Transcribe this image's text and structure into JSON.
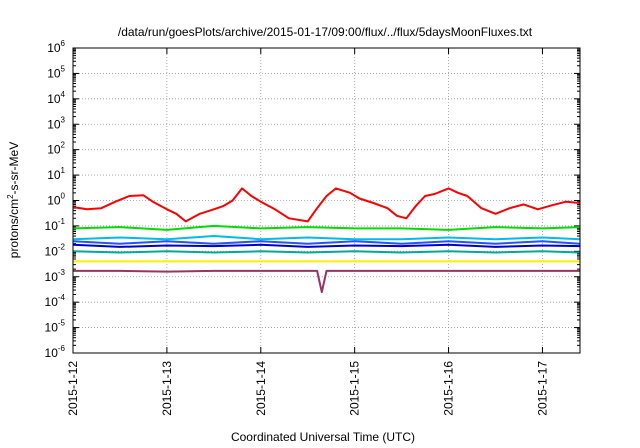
{
  "chart_data": {
    "type": "line",
    "title": "/data/run/goesPlots/archive/2015-01-17/09:00/flux/../flux/5daysMoonFluxes.txt",
    "xlabel": "Coordinated Universal Time (UTC)",
    "ylabel": {
      "prefix": "protons/cm",
      "sup": "2",
      "suffix": "-s-sr-MeV"
    },
    "yscale": "log",
    "ylim": [
      1e-06,
      1000000.0
    ],
    "xlim": [
      0,
      5.4
    ],
    "grid": true,
    "x_ticks": [
      "2015-1-12",
      "2015-1-13",
      "2015-1-14",
      "2015-1-15",
      "2015-1-16",
      "2015-1-17"
    ],
    "y_ticks": [
      {
        "base": "10",
        "exp": "-6"
      },
      {
        "base": "10",
        "exp": "-5"
      },
      {
        "base": "10",
        "exp": "-4"
      },
      {
        "base": "10",
        "exp": "-3"
      },
      {
        "base": "10",
        "exp": "-2"
      },
      {
        "base": "10",
        "exp": "-1"
      },
      {
        "base": "10",
        "exp": "0"
      },
      {
        "base": "10",
        "exp": "1"
      },
      {
        "base": "10",
        "exp": "2"
      },
      {
        "base": "10",
        "exp": "3"
      },
      {
        "base": "10",
        "exp": "4"
      },
      {
        "base": "10",
        "exp": "5"
      },
      {
        "base": "10",
        "exp": "6"
      }
    ],
    "series": [
      {
        "color": "#ff0000",
        "x": [
          0,
          0.15,
          0.3,
          0.45,
          0.6,
          0.75,
          0.85,
          1.0,
          1.1,
          1.2,
          1.35,
          1.5,
          1.6,
          1.7,
          1.8,
          1.9,
          2.0,
          2.15,
          2.3,
          2.5,
          2.6,
          2.7,
          2.8,
          2.95,
          3.05,
          3.2,
          3.35,
          3.45,
          3.55,
          3.65,
          3.75,
          3.85,
          4.0,
          4.1,
          4.2,
          4.35,
          4.5,
          4.65,
          4.8,
          4.95,
          5.1,
          5.25,
          5.4
        ],
        "y": [
          0.55,
          0.45,
          0.5,
          0.9,
          1.5,
          1.6,
          0.9,
          0.45,
          0.3,
          0.15,
          0.3,
          0.45,
          0.6,
          1.0,
          3.0,
          1.5,
          0.9,
          0.45,
          0.2,
          0.15,
          0.5,
          1.5,
          3.0,
          2.0,
          1.2,
          0.8,
          0.5,
          0.25,
          0.2,
          0.6,
          1.5,
          1.8,
          3.0,
          2.0,
          1.5,
          0.5,
          0.3,
          0.5,
          0.7,
          0.45,
          0.65,
          0.9,
          0.8
        ]
      },
      {
        "color": "#00dd00",
        "x": [
          0,
          0.5,
          1.0,
          1.5,
          2.0,
          2.5,
          3.0,
          3.5,
          4.0,
          4.5,
          5.0,
          5.4
        ],
        "y": [
          0.08,
          0.09,
          0.07,
          0.1,
          0.08,
          0.09,
          0.08,
          0.08,
          0.07,
          0.09,
          0.08,
          0.09
        ]
      },
      {
        "color": "#00bbee",
        "x": [
          0,
          0.5,
          1.0,
          1.5,
          2.0,
          2.5,
          3.0,
          3.5,
          4.0,
          4.5,
          5.0,
          5.4
        ],
        "y": [
          0.03,
          0.035,
          0.03,
          0.04,
          0.03,
          0.035,
          0.03,
          0.03,
          0.035,
          0.03,
          0.035,
          0.03
        ]
      },
      {
        "color": "#2255ff",
        "x": [
          0,
          0.5,
          1.0,
          1.5,
          2.0,
          2.5,
          3.0,
          3.5,
          4.0,
          4.5,
          5.0,
          5.4
        ],
        "y": [
          0.025,
          0.02,
          0.025,
          0.02,
          0.025,
          0.02,
          0.025,
          0.02,
          0.025,
          0.02,
          0.025,
          0.02
        ]
      },
      {
        "color": "#0000cc",
        "x": [
          0,
          0.5,
          1.0,
          1.5,
          2.0,
          2.5,
          3.0,
          3.5,
          4.0,
          4.5,
          5.0,
          5.4
        ],
        "y": [
          0.018,
          0.015,
          0.017,
          0.016,
          0.018,
          0.015,
          0.017,
          0.016,
          0.018,
          0.015,
          0.017,
          0.016
        ]
      },
      {
        "color": "#00aa99",
        "x": [
          0,
          0.5,
          1.0,
          1.5,
          2.0,
          2.5,
          3.0,
          3.5,
          4.0,
          4.5,
          5.0,
          5.4
        ],
        "y": [
          0.01,
          0.009,
          0.01,
          0.009,
          0.01,
          0.009,
          0.01,
          0.009,
          0.01,
          0.009,
          0.01,
          0.009
        ]
      },
      {
        "color": "#ffee00",
        "x": [
          0,
          0.5,
          1.0,
          1.5,
          2.0,
          2.5,
          3.0,
          3.5,
          4.0,
          4.5,
          5.0,
          5.4
        ],
        "y": [
          0.004,
          0.004,
          0.004,
          0.004,
          0.004,
          0.004,
          0.004,
          0.004,
          0.004,
          0.004,
          0.004,
          0.004
        ]
      },
      {
        "color": "#993366",
        "x": [
          0,
          0.5,
          1.0,
          1.5,
          2.0,
          2.5,
          2.6,
          2.65,
          2.7,
          3.0,
          3.5,
          4.0,
          4.5,
          5.0,
          5.4
        ],
        "y": [
          0.0017,
          0.0017,
          0.0016,
          0.0017,
          0.0017,
          0.0017,
          0.0017,
          0.00025,
          0.0017,
          0.0017,
          0.0017,
          0.0017,
          0.0017,
          0.0017,
          0.0017
        ]
      }
    ]
  }
}
